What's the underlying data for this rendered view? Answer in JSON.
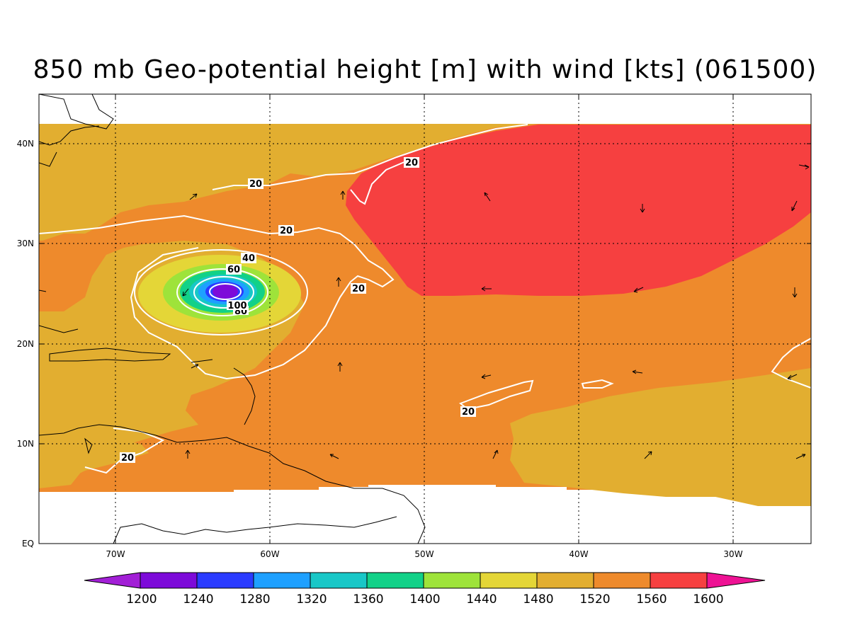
{
  "title": "850 mb Geo-potential height [m] with wind [kts] (061500)",
  "colors": {
    "h1200": "#a21fd6",
    "h1240": "#7d0ad9",
    "h1280": "#2a3bff",
    "h1320": "#1ea0ff",
    "h1360": "#18c7c7",
    "h1400": "#12d188",
    "h1440": "#9ee33a",
    "h1480": "#e4d637",
    "h1520": "#e2ae30",
    "h1560": "#ee8a2c",
    "h1600": "#f64040",
    "h_over": "#ee1294",
    "contour": "#ffffff",
    "coast": "#000000"
  },
  "axes": {
    "lat_labels": [
      "40N",
      "30N",
      "20N",
      "10N",
      "EQ"
    ],
    "lon_labels": [
      "70W",
      "60W",
      "50W",
      "40W",
      "30W"
    ]
  },
  "colorbar": {
    "labels": [
      "1200",
      "1240",
      "1280",
      "1320",
      "1360",
      "1400",
      "1440",
      "1480",
      "1520",
      "1560",
      "1600"
    ]
  },
  "contour_labels": [
    "20",
    "20",
    "20",
    "20",
    "20",
    "20",
    "40",
    "60",
    "80",
    "100"
  ]
}
